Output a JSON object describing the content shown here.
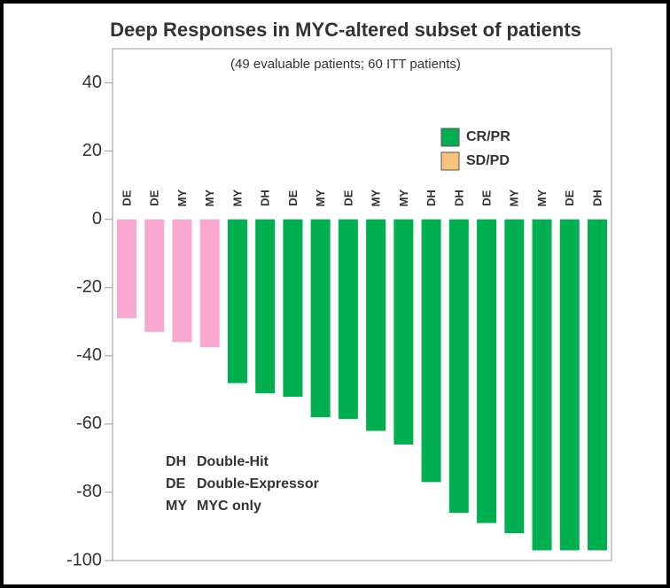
{
  "chart_data": {
    "type": "bar",
    "title": "Deep Responses in MYC-altered subset of patients",
    "subtitle": "(49 evaluable patients; 60 ITT patients)",
    "categories": [
      "DE",
      "DE",
      "MY",
      "MY",
      "MY",
      "DH",
      "DE",
      "MY",
      "DE",
      "MY",
      "MY",
      "DH",
      "DH",
      "DE",
      "MY",
      "MY",
      "DE",
      "DH"
    ],
    "values": [
      -29,
      -33,
      -36,
      -37.5,
      -48,
      -51,
      -52,
      -58,
      -58.5,
      -62,
      -66,
      -77,
      -86,
      -89,
      -92,
      -97,
      -97,
      -97
    ],
    "colors": [
      "#f9a8cf",
      "#f9a8cf",
      "#f9a8cf",
      "#f9a8cf",
      "#00b050",
      "#00b050",
      "#00b050",
      "#00b050",
      "#00b050",
      "#00b050",
      "#00b050",
      "#00b050",
      "#00b050",
      "#00b050",
      "#00b050",
      "#00b050",
      "#00b050",
      "#00b050"
    ],
    "legend": [
      {
        "name": "CR/PR",
        "color": "#00b050"
      },
      {
        "name": "SD/PD",
        "color": "#f9c27a"
      }
    ],
    "annotations": [
      {
        "code": "DH",
        "text": "Double-Hit"
      },
      {
        "code": "DE",
        "text": "Double-Expressor"
      },
      {
        "code": "MY",
        "text": "MYC only"
      }
    ],
    "ylim": [
      -100,
      50
    ],
    "yticks": [
      -100,
      -80,
      -60,
      -40,
      -20,
      0,
      20,
      40
    ]
  }
}
